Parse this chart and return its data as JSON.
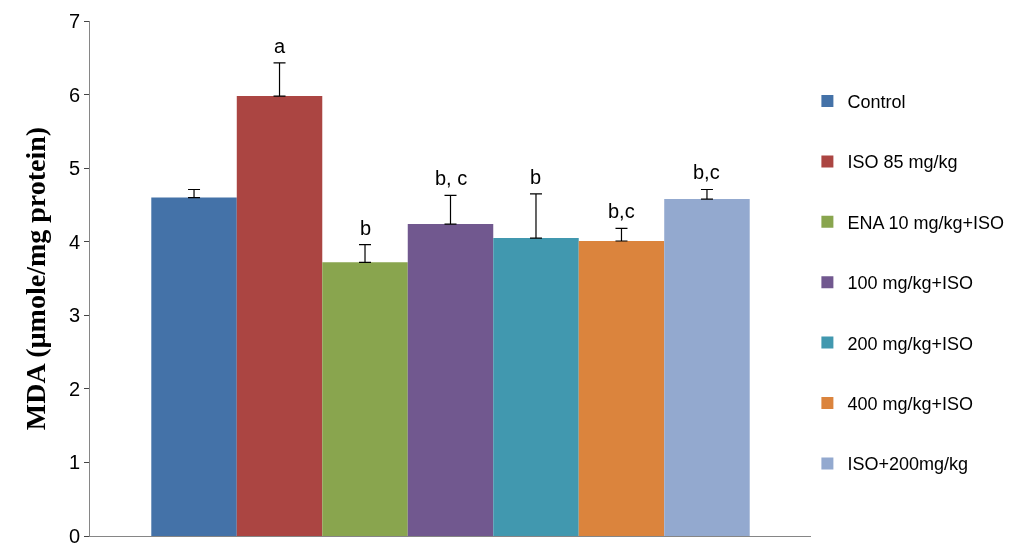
{
  "chart_data": {
    "type": "bar",
    "ylabel": "MDA (µmole/mg protein)",
    "categories": [
      null
    ],
    "series": [
      {
        "name": "Control",
        "color": "#4472a8",
        "values": [
          4.6
        ],
        "errors": [
          [
            4.6,
            4.71
          ]
        ],
        "value_labels": [
          null
        ]
      },
      {
        "name": "ISO 85 mg/kg",
        "color": "#ab4542",
        "values": [
          5.98
        ],
        "errors": [
          [
            5.98,
            6.43
          ]
        ],
        "value_labels": [
          "a"
        ]
      },
      {
        "name": "ENA 10 mg/kg+ISO",
        "color": "#89a54e",
        "values": [
          3.72
        ],
        "errors": [
          [
            3.72,
            3.96
          ]
        ],
        "value_labels": [
          "b"
        ]
      },
      {
        "name": "100 mg/kg+ISO",
        "color": "#71588f",
        "values": [
          4.24
        ],
        "errors": [
          [
            4.24,
            4.63
          ]
        ],
        "value_labels": [
          "b, c"
        ]
      },
      {
        "name": "200 mg/kg+ISO",
        "color": "#4198af",
        "values": [
          4.05
        ],
        "errors": [
          [
            4.05,
            4.65
          ]
        ],
        "value_labels": [
          "b"
        ]
      },
      {
        "name": "400 mg/kg+ISO",
        "color": "#db843d",
        "values": [
          4.01
        ],
        "errors": [
          [
            4.01,
            4.18
          ]
        ],
        "value_labels": [
          "b,c"
        ]
      },
      {
        "name": "ISO+200mg/kg",
        "color": "#93a9cf",
        "values": [
          4.58
        ],
        "errors": [
          [
            4.58,
            4.71
          ]
        ],
        "value_labels": [
          "b,c"
        ]
      }
    ],
    "ylim": [
      0,
      7
    ],
    "yticks": [
      0,
      1,
      2,
      3,
      4,
      5,
      6,
      7
    ],
    "legend": "right"
  }
}
